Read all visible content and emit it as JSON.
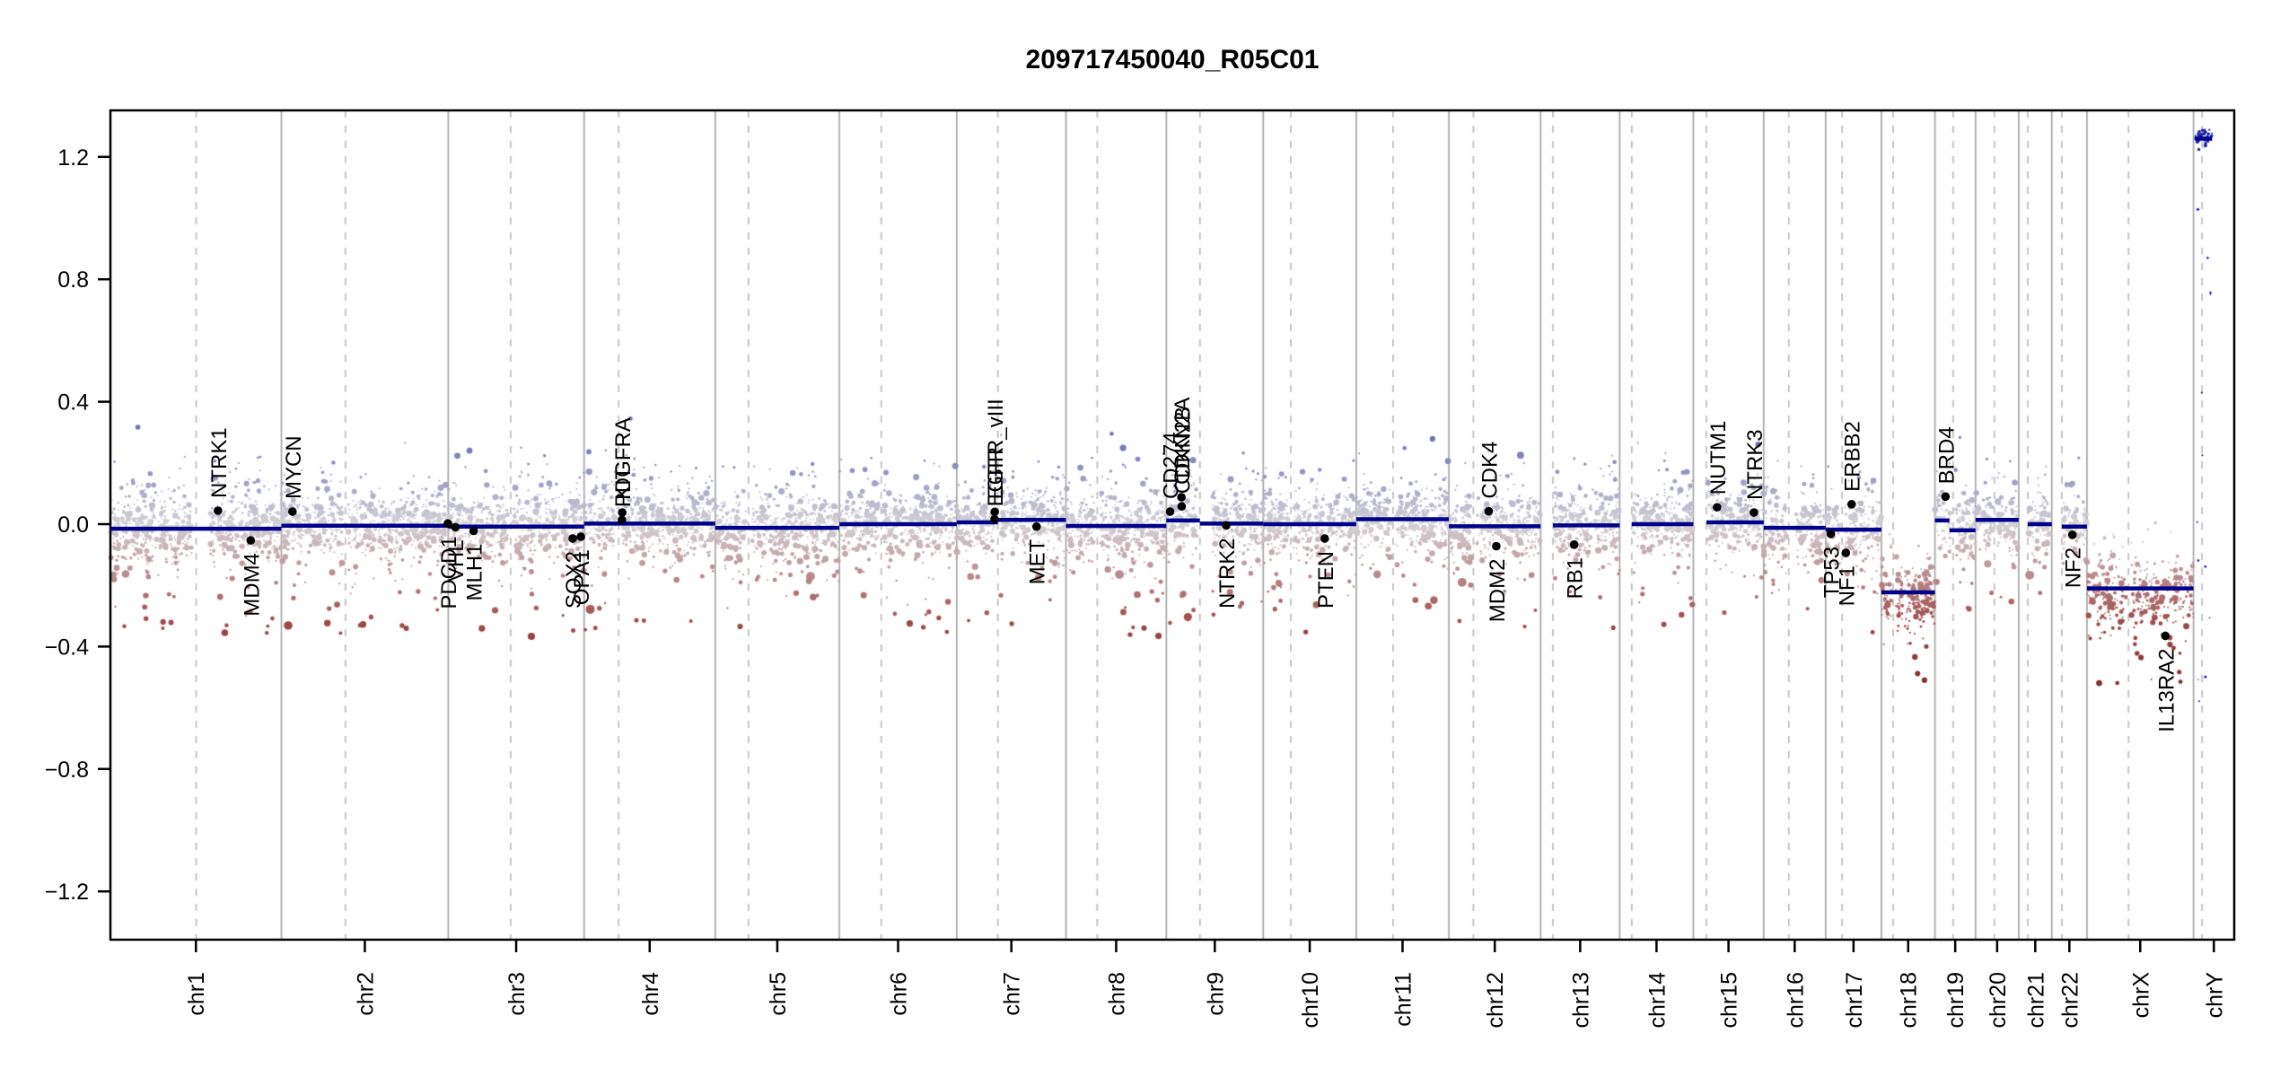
{
  "title": "209717450040_R05C01",
  "chart_data": {
    "type": "scatter",
    "subtype": "genome-wide copy-number (CNV) plot",
    "title": "209717450040_R05C01",
    "xlabel": "",
    "ylabel": "",
    "ylim": [
      -1.35,
      1.35
    ],
    "ytick_values": [
      -1.2,
      -0.8,
      -0.4,
      0.0,
      0.4,
      0.8,
      1.2
    ],
    "ytick_labels": [
      "−1.2",
      "−0.8",
      "−0.4",
      "0.0",
      "0.4",
      "0.8",
      "1.2"
    ],
    "grid": "chromosome separators solid, centromeres dashed",
    "legend": "none",
    "genome_total_mb": 3095.7,
    "chromosomes": [
      {
        "name": "chr1",
        "length_mb": 249.25,
        "centromere_mb": 125.0,
        "gaps": [
          [
            120.5,
            145.0
          ]
        ]
      },
      {
        "name": "chr2",
        "length_mb": 243.2,
        "centromere_mb": 93.3,
        "gaps": [
          [
            89.3,
            97.3
          ]
        ]
      },
      {
        "name": "chr3",
        "length_mb": 198.02,
        "centromere_mb": 91.0,
        "gaps": [
          [
            87.0,
            95.0
          ]
        ]
      },
      {
        "name": "chr4",
        "length_mb": 191.15,
        "centromere_mb": 50.4,
        "gaps": [
          [
            46.4,
            54.4
          ]
        ]
      },
      {
        "name": "chr5",
        "length_mb": 180.92,
        "centromere_mb": 48.4,
        "gaps": [
          [
            44.4,
            52.4
          ]
        ]
      },
      {
        "name": "chr6",
        "length_mb": 171.12,
        "centromere_mb": 61.0,
        "gaps": [
          [
            57.0,
            65.0
          ]
        ]
      },
      {
        "name": "chr7",
        "length_mb": 159.14,
        "centromere_mb": 59.9,
        "gaps": [
          [
            55.9,
            63.9
          ]
        ]
      },
      {
        "name": "chr8",
        "length_mb": 146.36,
        "centromere_mb": 45.6,
        "gaps": [
          [
            41.6,
            49.6
          ]
        ]
      },
      {
        "name": "chr9",
        "length_mb": 141.21,
        "centromere_mb": 49.0,
        "gaps": [
          [
            45.0,
            67.0
          ]
        ]
      },
      {
        "name": "chr10",
        "length_mb": 135.53,
        "centromere_mb": 40.2,
        "gaps": [
          [
            36.2,
            44.2
          ]
        ]
      },
      {
        "name": "chr11",
        "length_mb": 135.01,
        "centromere_mb": 53.7,
        "gaps": [
          [
            49.7,
            57.7
          ]
        ]
      },
      {
        "name": "chr12",
        "length_mb": 133.85,
        "centromere_mb": 35.8,
        "gaps": [
          [
            31.8,
            39.8
          ]
        ]
      },
      {
        "name": "chr13",
        "length_mb": 115.17,
        "centromere_mb": 17.9,
        "gaps": [
          [
            0.0,
            19.5
          ]
        ]
      },
      {
        "name": "chr14",
        "length_mb": 107.35,
        "centromere_mb": 17.6,
        "gaps": [
          [
            0.0,
            19.5
          ]
        ]
      },
      {
        "name": "chr15",
        "length_mb": 102.53,
        "centromere_mb": 19.0,
        "gaps": [
          [
            0.0,
            20.5
          ]
        ]
      },
      {
        "name": "chr16",
        "length_mb": 90.35,
        "centromere_mb": 36.6,
        "gaps": [
          [
            33.0,
            47.0
          ]
        ]
      },
      {
        "name": "chr17",
        "length_mb": 81.2,
        "centromere_mb": 24.0,
        "gaps": [
          [
            21.0,
            27.5
          ]
        ]
      },
      {
        "name": "chr18",
        "length_mb": 78.08,
        "centromere_mb": 17.2,
        "gaps": [
          [
            14.2,
            20.2
          ]
        ]
      },
      {
        "name": "chr19",
        "length_mb": 59.13,
        "centromere_mb": 26.5,
        "gaps": [
          [
            23.5,
            30.0
          ]
        ]
      },
      {
        "name": "chr20",
        "length_mb": 63.03,
        "centromere_mb": 27.5,
        "gaps": [
          [
            24.5,
            30.5
          ]
        ]
      },
      {
        "name": "chr21",
        "length_mb": 48.13,
        "centromere_mb": 13.2,
        "gaps": [
          [
            0.0,
            14.5
          ]
        ]
      },
      {
        "name": "chr22",
        "length_mb": 51.3,
        "centromere_mb": 14.7,
        "gaps": [
          [
            0.0,
            16.5
          ]
        ]
      },
      {
        "name": "chrX",
        "length_mb": 155.27,
        "centromere_mb": 60.6,
        "gaps": [
          [
            57.0,
            64.5
          ]
        ]
      },
      {
        "name": "chrY",
        "length_mb": 59.37,
        "centromere_mb": 12.5,
        "gaps": []
      }
    ],
    "segments": [
      {
        "chrom": "chr1",
        "start_mb": 0,
        "end_mb": 249.25,
        "value": -0.015
      },
      {
        "chrom": "chr2",
        "start_mb": 0,
        "end_mb": 243.2,
        "value": -0.005
      },
      {
        "chrom": "chr3",
        "start_mb": 0,
        "end_mb": 198.02,
        "value": -0.008
      },
      {
        "chrom": "chr4",
        "start_mb": 0,
        "end_mb": 191.15,
        "value": 0.002
      },
      {
        "chrom": "chr5",
        "start_mb": 0,
        "end_mb": 180.92,
        "value": -0.012
      },
      {
        "chrom": "chr6",
        "start_mb": 0,
        "end_mb": 171.12,
        "value": 0.0
      },
      {
        "chrom": "chr7",
        "start_mb": 0,
        "end_mb": 59.9,
        "value": 0.006
      },
      {
        "chrom": "chr7",
        "start_mb": 59.9,
        "end_mb": 159.14,
        "value": 0.014
      },
      {
        "chrom": "chr8",
        "start_mb": 0,
        "end_mb": 146.36,
        "value": -0.006
      },
      {
        "chrom": "chr9",
        "start_mb": 0,
        "end_mb": 49.0,
        "value": 0.012
      },
      {
        "chrom": "chr9",
        "start_mb": 49.0,
        "end_mb": 141.21,
        "value": 0.002
      },
      {
        "chrom": "chr10",
        "start_mb": 0,
        "end_mb": 135.53,
        "value": 0.0
      },
      {
        "chrom": "chr11",
        "start_mb": 0,
        "end_mb": 135.01,
        "value": 0.016
      },
      {
        "chrom": "chr12",
        "start_mb": 0,
        "end_mb": 133.85,
        "value": -0.007
      },
      {
        "chrom": "chr13",
        "start_mb": 17.9,
        "end_mb": 115.17,
        "value": -0.004
      },
      {
        "chrom": "chr14",
        "start_mb": 17.6,
        "end_mb": 107.35,
        "value": 0.0
      },
      {
        "chrom": "chr15",
        "start_mb": 19.0,
        "end_mb": 102.53,
        "value": 0.006
      },
      {
        "chrom": "chr16",
        "start_mb": 0,
        "end_mb": 90.35,
        "value": -0.012
      },
      {
        "chrom": "chr17",
        "start_mb": 0,
        "end_mb": 81.2,
        "value": -0.018
      },
      {
        "chrom": "chr18",
        "start_mb": 0,
        "end_mb": 78.08,
        "value": -0.223
      },
      {
        "chrom": "chr19",
        "start_mb": 0,
        "end_mb": 21.0,
        "value": 0.012
      },
      {
        "chrom": "chr19",
        "start_mb": 21.0,
        "end_mb": 59.13,
        "value": -0.02
      },
      {
        "chrom": "chr20",
        "start_mb": 0,
        "end_mb": 63.03,
        "value": 0.014
      },
      {
        "chrom": "chr21",
        "start_mb": 13.2,
        "end_mb": 48.13,
        "value": 0.0
      },
      {
        "chrom": "chr22",
        "start_mb": 14.7,
        "end_mb": 51.3,
        "value": -0.008
      },
      {
        "chrom": "chrX",
        "start_mb": 0,
        "end_mb": 155.27,
        "value": -0.21
      },
      {
        "chrom": "chrY",
        "start_mb": 2.0,
        "end_mb": 27.0,
        "value": 1.26
      }
    ],
    "genes": [
      {
        "name": "NTRK1",
        "chrom": "chr1",
        "pos_mb": 156.8,
        "value": 0.044,
        "side": "above"
      },
      {
        "name": "MDM4",
        "chrom": "chr1",
        "pos_mb": 204.5,
        "value": -0.053,
        "side": "below"
      },
      {
        "name": "MYCN",
        "chrom": "chr2",
        "pos_mb": 16.1,
        "value": 0.041,
        "side": "above"
      },
      {
        "name": "PDCD1",
        "chrom": "chr2",
        "pos_mb": 242.6,
        "value": 0.002,
        "side": "below"
      },
      {
        "name": "VHL",
        "chrom": "chr3",
        "pos_mb": 10.2,
        "value": -0.01,
        "side": "below"
      },
      {
        "name": "MLH1",
        "chrom": "chr3",
        "pos_mb": 37.0,
        "value": -0.022,
        "side": "below"
      },
      {
        "name": "SOX2",
        "chrom": "chr3",
        "pos_mb": 181.4,
        "value": -0.047,
        "side": "below"
      },
      {
        "name": "OPA1",
        "chrom": "chr3",
        "pos_mb": 193.3,
        "value": -0.041,
        "side": "below"
      },
      {
        "name": "PDGFRA",
        "chrom": "chr4",
        "pos_mb": 55.1,
        "value": 0.014,
        "side": "above"
      },
      {
        "name": "KIT",
        "chrom": "chr4",
        "pos_mb": 55.6,
        "value": 0.038,
        "side": "above"
      },
      {
        "name": "EGFR",
        "chrom": "chr7",
        "pos_mb": 55.1,
        "value": 0.016,
        "side": "above"
      },
      {
        "name": "EGFR_vIII",
        "chrom": "chr7",
        "pos_mb": 55.3,
        "value": 0.04,
        "side": "above"
      },
      {
        "name": "MET",
        "chrom": "chr7",
        "pos_mb": 116.3,
        "value": -0.008,
        "side": "below"
      },
      {
        "name": "CD274",
        "chrom": "chr9",
        "pos_mb": 5.45,
        "value": 0.041,
        "side": "above"
      },
      {
        "name": "CDKN2A",
        "chrom": "chr9",
        "pos_mb": 21.97,
        "value": 0.088,
        "side": "above"
      },
      {
        "name": "CDKN2B",
        "chrom": "chr9",
        "pos_mb": 22.3,
        "value": 0.058,
        "side": "above"
      },
      {
        "name": "NTRK2",
        "chrom": "chr9",
        "pos_mb": 87.3,
        "value": -0.004,
        "side": "below"
      },
      {
        "name": "PTEN",
        "chrom": "chr10",
        "pos_mb": 89.6,
        "value": -0.047,
        "side": "below"
      },
      {
        "name": "CDK4",
        "chrom": "chr12",
        "pos_mb": 58.1,
        "value": 0.042,
        "side": "above"
      },
      {
        "name": "MDM2",
        "chrom": "chr12",
        "pos_mb": 69.2,
        "value": -0.072,
        "side": "below"
      },
      {
        "name": "RB1",
        "chrom": "chr13",
        "pos_mb": 48.9,
        "value": -0.067,
        "side": "below"
      },
      {
        "name": "NUTM1",
        "chrom": "chr15",
        "pos_mb": 34.6,
        "value": 0.055,
        "side": "above"
      },
      {
        "name": "NTRK3",
        "chrom": "chr15",
        "pos_mb": 88.4,
        "value": 0.038,
        "side": "above"
      },
      {
        "name": "ERBB2",
        "chrom": "chr17",
        "pos_mb": 37.8,
        "value": 0.065,
        "side": "above"
      },
      {
        "name": "TP53",
        "chrom": "chr17",
        "pos_mb": 7.57,
        "value": -0.032,
        "side": "below"
      },
      {
        "name": "NF1",
        "chrom": "chr17",
        "pos_mb": 29.4,
        "value": -0.094,
        "side": "below"
      },
      {
        "name": "BRD4",
        "chrom": "chr19",
        "pos_mb": 15.4,
        "value": 0.09,
        "side": "above"
      },
      {
        "name": "NF2",
        "chrom": "chr22",
        "pos_mb": 30.0,
        "value": -0.035,
        "side": "below"
      },
      {
        "name": "IL13RA2",
        "chrom": "chrX",
        "pos_mb": 114.3,
        "value": -0.365,
        "side": "below"
      }
    ],
    "colors": {
      "segment_line": "#00008B",
      "gene_marker": "#000000",
      "separator_solid": "#a6a6a6",
      "separator_dashed": "#bdbdbd",
      "point_positive": "#6e73b3",
      "point_near_zero": "#d4d2d6",
      "point_negative": "#a04a4a",
      "point_deep_negative": "#7d2626",
      "chry_points": "#1b1ba6",
      "axis": "#000000"
    }
  }
}
